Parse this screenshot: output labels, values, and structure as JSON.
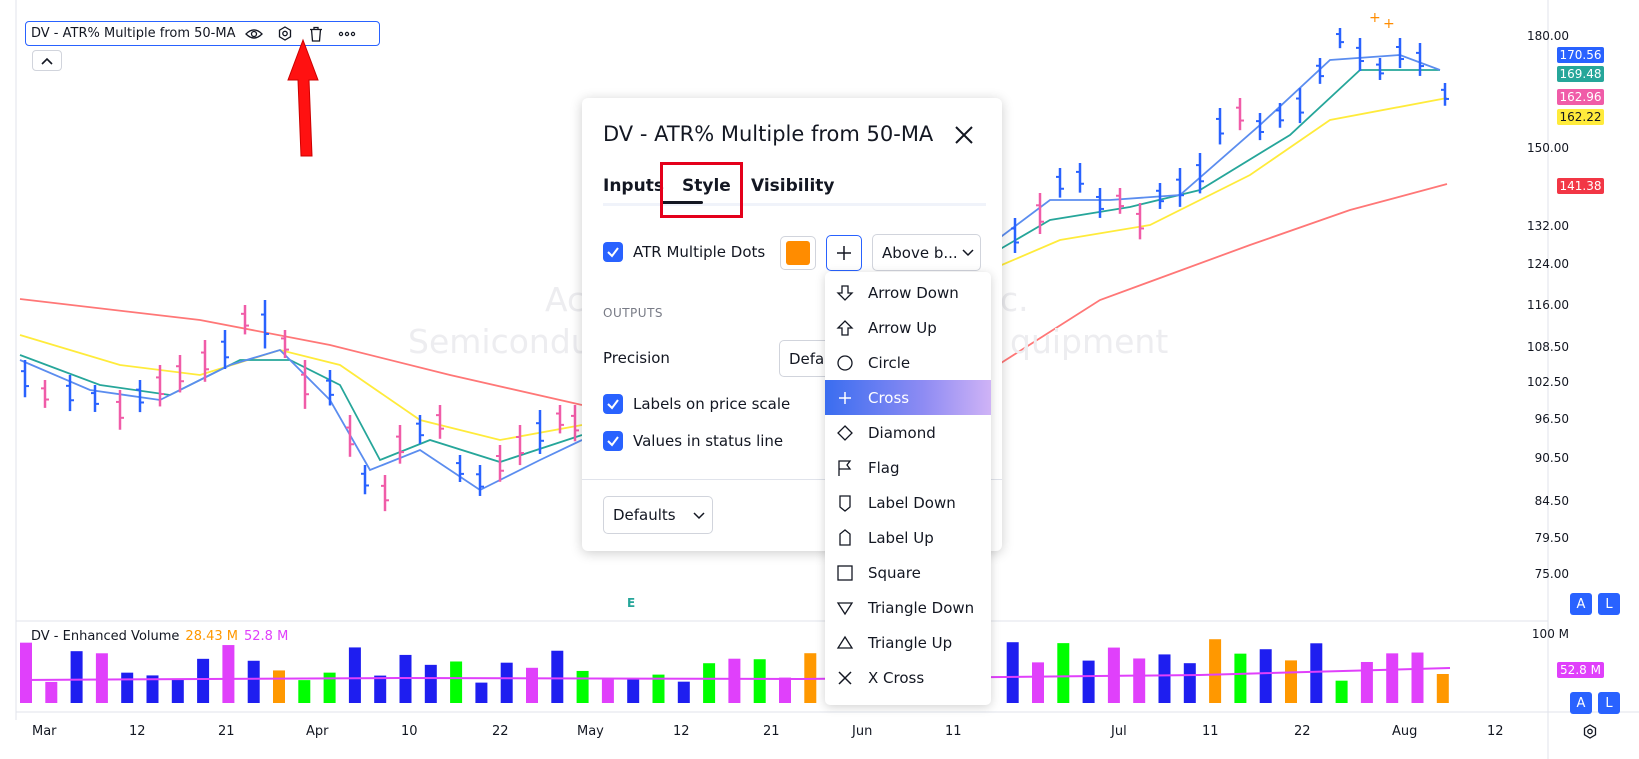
{
  "indicator_legend": {
    "title": "DV - ATR% Multiple from 50-MA",
    "icons": [
      "eye-icon",
      "settings-icon",
      "trash-icon",
      "more-icon"
    ]
  },
  "watermark": {
    "line1_left": "Ac",
    "line1_right": "c.",
    "line2_left": "Semicondu",
    "line2_right": "quipment"
  },
  "price_axis": {
    "ticks": [
      "180.00",
      "150.00",
      "132.00",
      "124.00",
      "116.00",
      "108.50",
      "102.50",
      "96.50",
      "90.50",
      "84.50",
      "79.50",
      "75.00"
    ],
    "tags": [
      {
        "text": "170.56",
        "color": "#2962ff"
      },
      {
        "text": "169.48",
        "color": "#26a69a"
      },
      {
        "text": "162.96",
        "color": "#f05ca8"
      },
      {
        "text": "162.22",
        "color": "#ffeb3b"
      },
      {
        "text": "141.38",
        "color": "#f23645"
      }
    ]
  },
  "volume_axis": {
    "tick": "100 M",
    "tag": "52.8 M"
  },
  "date_axis": {
    "labels": [
      "Mar",
      "12",
      "21",
      "Apr",
      "10",
      "22",
      "May",
      "12",
      "21",
      "Jun",
      "11",
      "Jul",
      "11",
      "22",
      "Aug",
      "12"
    ]
  },
  "event_marker": "E",
  "volume_legend": {
    "title": "DV - Enhanced Volume",
    "value1": "28.43 M",
    "value2": "52.8 M"
  },
  "scale_buttons": {
    "auto": "A",
    "log": "L"
  },
  "dialog": {
    "title": "DV - ATR% Multiple from 50-MA",
    "tabs": {
      "inputs": "Inputs",
      "style": "Style",
      "visibility": "Visibility"
    },
    "atr_dots_label": "ATR Multiple Dots",
    "dot_color": "#ff8c00",
    "location_select": "Above b...",
    "outputs_header": "OUTPUTS",
    "precision_label": "Precision",
    "precision_value": "Defa",
    "labels_on_scale": "Labels on price scale",
    "values_in_status": "Values in status line",
    "defaults_button": "Defaults"
  },
  "shape_dropdown": {
    "selected": "Cross",
    "items": [
      {
        "label": "Arrow Down",
        "icon": "arrow-down-icon"
      },
      {
        "label": "Arrow Up",
        "icon": "arrow-up-icon"
      },
      {
        "label": "Circle",
        "icon": "circle-icon"
      },
      {
        "label": "Cross",
        "icon": "cross-icon"
      },
      {
        "label": "Diamond",
        "icon": "diamond-icon"
      },
      {
        "label": "Flag",
        "icon": "flag-icon"
      },
      {
        "label": "Label Down",
        "icon": "label-down-icon"
      },
      {
        "label": "Label Up",
        "icon": "label-up-icon"
      },
      {
        "label": "Square",
        "icon": "square-icon"
      },
      {
        "label": "Triangle Down",
        "icon": "triangle-down-icon"
      },
      {
        "label": "Triangle Up",
        "icon": "triangle-up-icon"
      },
      {
        "label": "X Cross",
        "icon": "x-cross-icon"
      }
    ]
  }
}
